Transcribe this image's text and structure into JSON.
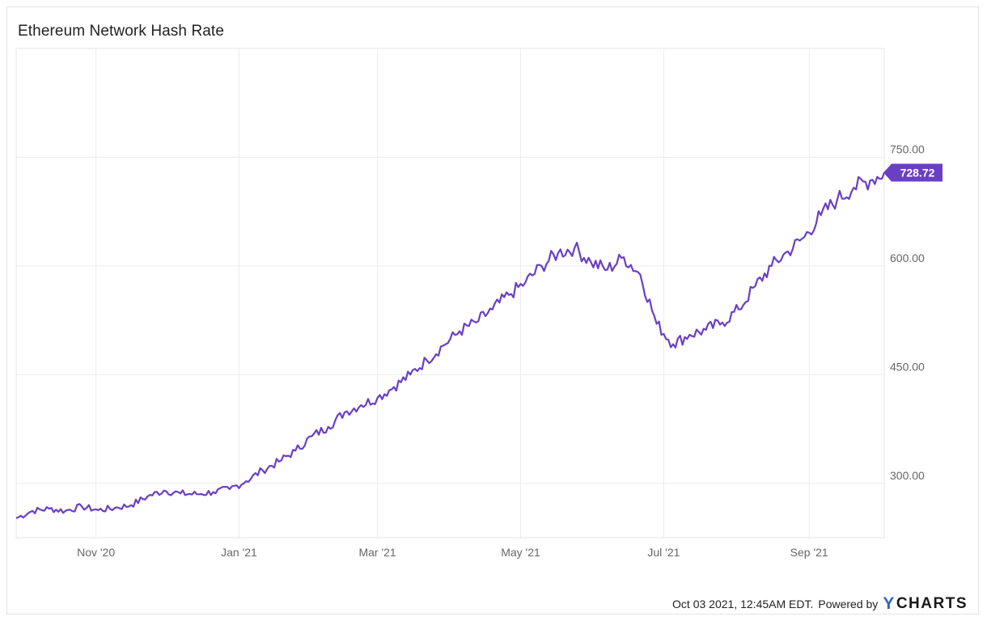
{
  "chart_data": {
    "type": "line",
    "title": "Ethereum Network Hash Rate",
    "xlabel": "",
    "ylabel": "",
    "x_ticks": [
      "Nov '20",
      "Jan '21",
      "Mar '21",
      "May '21",
      "Jul '21",
      "Sep '21"
    ],
    "x_tick_dates": [
      "2020-11-01",
      "2021-01-01",
      "2021-03-01",
      "2021-05-01",
      "2021-07-01",
      "2021-09-01"
    ],
    "y_ticks": [
      300,
      450,
      600,
      750
    ],
    "y_tick_labels": [
      "300.00",
      "450.00",
      "600.00",
      "750.00"
    ],
    "x_range": [
      "2020-09-28",
      "2021-10-03"
    ],
    "ylim": [
      225,
      900
    ],
    "grid": true,
    "line_color": "#6a3fc4",
    "last_value": 728.72,
    "last_value_label": "728.72",
    "series": [
      {
        "x": [
          "2020-09-28",
          "2020-10-05",
          "2020-10-12",
          "2020-10-19",
          "2020-10-26",
          "2020-11-02",
          "2020-11-09",
          "2020-11-16",
          "2020-11-23",
          "2020-11-30",
          "2020-12-07",
          "2020-12-14",
          "2020-12-21",
          "2020-12-28",
          "2021-01-04",
          "2021-01-11",
          "2021-01-18",
          "2021-01-25",
          "2021-02-01",
          "2021-02-08",
          "2021-02-15",
          "2021-02-22",
          "2021-03-01",
          "2021-03-08",
          "2021-03-15",
          "2021-03-22",
          "2021-03-29",
          "2021-04-05",
          "2021-04-12",
          "2021-04-19",
          "2021-04-26",
          "2021-05-03",
          "2021-05-10",
          "2021-05-17",
          "2021-05-24",
          "2021-05-31",
          "2021-06-07",
          "2021-06-14",
          "2021-06-21",
          "2021-06-28",
          "2021-07-05",
          "2021-07-12",
          "2021-07-19",
          "2021-07-26",
          "2021-08-02",
          "2021-08-09",
          "2021-08-16",
          "2021-08-23",
          "2021-08-30",
          "2021-09-06",
          "2021-09-13",
          "2021-09-20",
          "2021-09-27",
          "2021-10-03"
        ],
        "values": [
          252,
          262,
          265,
          262,
          268,
          263,
          266,
          270,
          282,
          290,
          286,
          285,
          288,
          292,
          303,
          318,
          330,
          345,
          365,
          378,
          398,
          408,
          418,
          433,
          450,
          470,
          490,
          510,
          522,
          540,
          560,
          577,
          600,
          618,
          625,
          605,
          595,
          612,
          588,
          520,
          492,
          505,
          512,
          522,
          540,
          572,
          600,
          620,
          640,
          670,
          692,
          708,
          718,
          728.72
        ]
      }
    ]
  },
  "footer": {
    "timestamp": "Oct 03 2021, 12:45AM EDT.",
    "powered_by": "Powered by",
    "brand_y": "Y",
    "brand_rest": "CHARTS"
  }
}
